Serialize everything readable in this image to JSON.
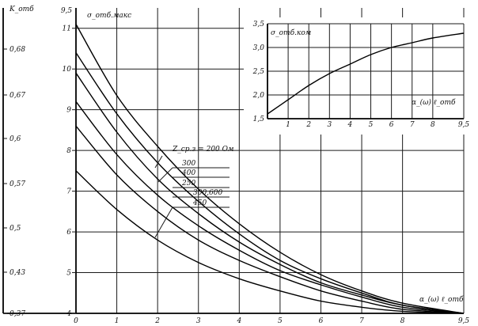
{
  "chart_data": [
    {
      "type": "line",
      "y_left_label": "K_отб",
      "y_right_label": "σ_отб.макс",
      "x_label": "α_(ω) ℓ_отб",
      "x_ticks": [
        "0",
        "1",
        "2",
        "3",
        "4",
        "5",
        "6",
        "7",
        "8",
        "9,5"
      ],
      "x_tick_values": [
        0,
        1,
        2,
        3,
        4,
        5,
        6,
        7,
        8,
        9.5
      ],
      "xlim": [
        0,
        9.5
      ],
      "y_right_ticks": [
        "4",
        "5",
        "6",
        "7",
        "8",
        "9",
        "10",
        "11"
      ],
      "y_right_tick_values": [
        4,
        5,
        6,
        7,
        8,
        9,
        10,
        11
      ],
      "y_left_ticks": [
        "0,37",
        "0,43",
        "0,5",
        "0,57",
        "0,6",
        "0,67",
        "0,68"
      ],
      "ylim": [
        4,
        11.5
      ],
      "top_label": "9,5",
      "legend_title": "Z_ср.з = 200 Ом",
      "series": [
        {
          "name": "200",
          "x": [
            0,
            1,
            2,
            3,
            4,
            5,
            6,
            7,
            8,
            9.5
          ],
          "y": [
            11.1,
            9.35,
            8.1,
            7.05,
            6.2,
            5.5,
            4.95,
            4.55,
            4.25,
            4.0
          ]
        },
        {
          "name": "300",
          "x": [
            0,
            1,
            2,
            3,
            4,
            5,
            6,
            7,
            8,
            9.5
          ],
          "y": [
            10.4,
            8.9,
            7.7,
            6.75,
            5.95,
            5.3,
            4.85,
            4.5,
            4.2,
            4.0
          ]
        },
        {
          "name": "400",
          "x": [
            0,
            1,
            2,
            3,
            4,
            5,
            6,
            7,
            8,
            9.5
          ],
          "y": [
            9.9,
            8.45,
            7.3,
            6.45,
            5.75,
            5.2,
            4.75,
            4.45,
            4.2,
            4.0
          ]
        },
        {
          "name": "250",
          "x": [
            0,
            1,
            2,
            3,
            4,
            5,
            6,
            7,
            8,
            9.5
          ],
          "y": [
            9.2,
            7.9,
            6.9,
            6.15,
            5.55,
            5.05,
            4.7,
            4.4,
            4.15,
            4.0
          ]
        },
        {
          "name": "300,600",
          "x": [
            0,
            1,
            2,
            3,
            4,
            5,
            6,
            7,
            8,
            9.5
          ],
          "y": [
            8.6,
            7.4,
            6.5,
            5.8,
            5.3,
            4.9,
            4.55,
            4.3,
            4.1,
            4.0
          ]
        },
        {
          "name": "450",
          "x": [
            0,
            1,
            2,
            3,
            4,
            5,
            6,
            7,
            8,
            9.5
          ],
          "y": [
            7.5,
            6.55,
            5.8,
            5.25,
            4.85,
            4.55,
            4.3,
            4.15,
            4.05,
            4.0
          ]
        }
      ]
    },
    {
      "type": "line",
      "title": "σ_отб.ком",
      "x_label": "α_(ω) ℓ_отб",
      "x_ticks": [
        "1",
        "2",
        "3",
        "4",
        "5",
        "6",
        "7",
        "8",
        "9,5"
      ],
      "x_tick_values": [
        1,
        2,
        3,
        4,
        5,
        6,
        7,
        8,
        9.5
      ],
      "xlim": [
        0,
        9.5
      ],
      "y_ticks": [
        "1,5",
        "2,0",
        "2,5",
        "3,0",
        "3,5"
      ],
      "y_tick_values": [
        1.5,
        2.0,
        2.5,
        3.0,
        3.5
      ],
      "ylim": [
        1.5,
        3.5
      ],
      "series": [
        {
          "name": "σ_отб.ком",
          "x": [
            0,
            1,
            2,
            3,
            4,
            5,
            6,
            7,
            8,
            9.5
          ],
          "y": [
            1.6,
            1.9,
            2.2,
            2.45,
            2.65,
            2.85,
            3.0,
            3.1,
            3.2,
            3.3
          ]
        }
      ]
    }
  ]
}
